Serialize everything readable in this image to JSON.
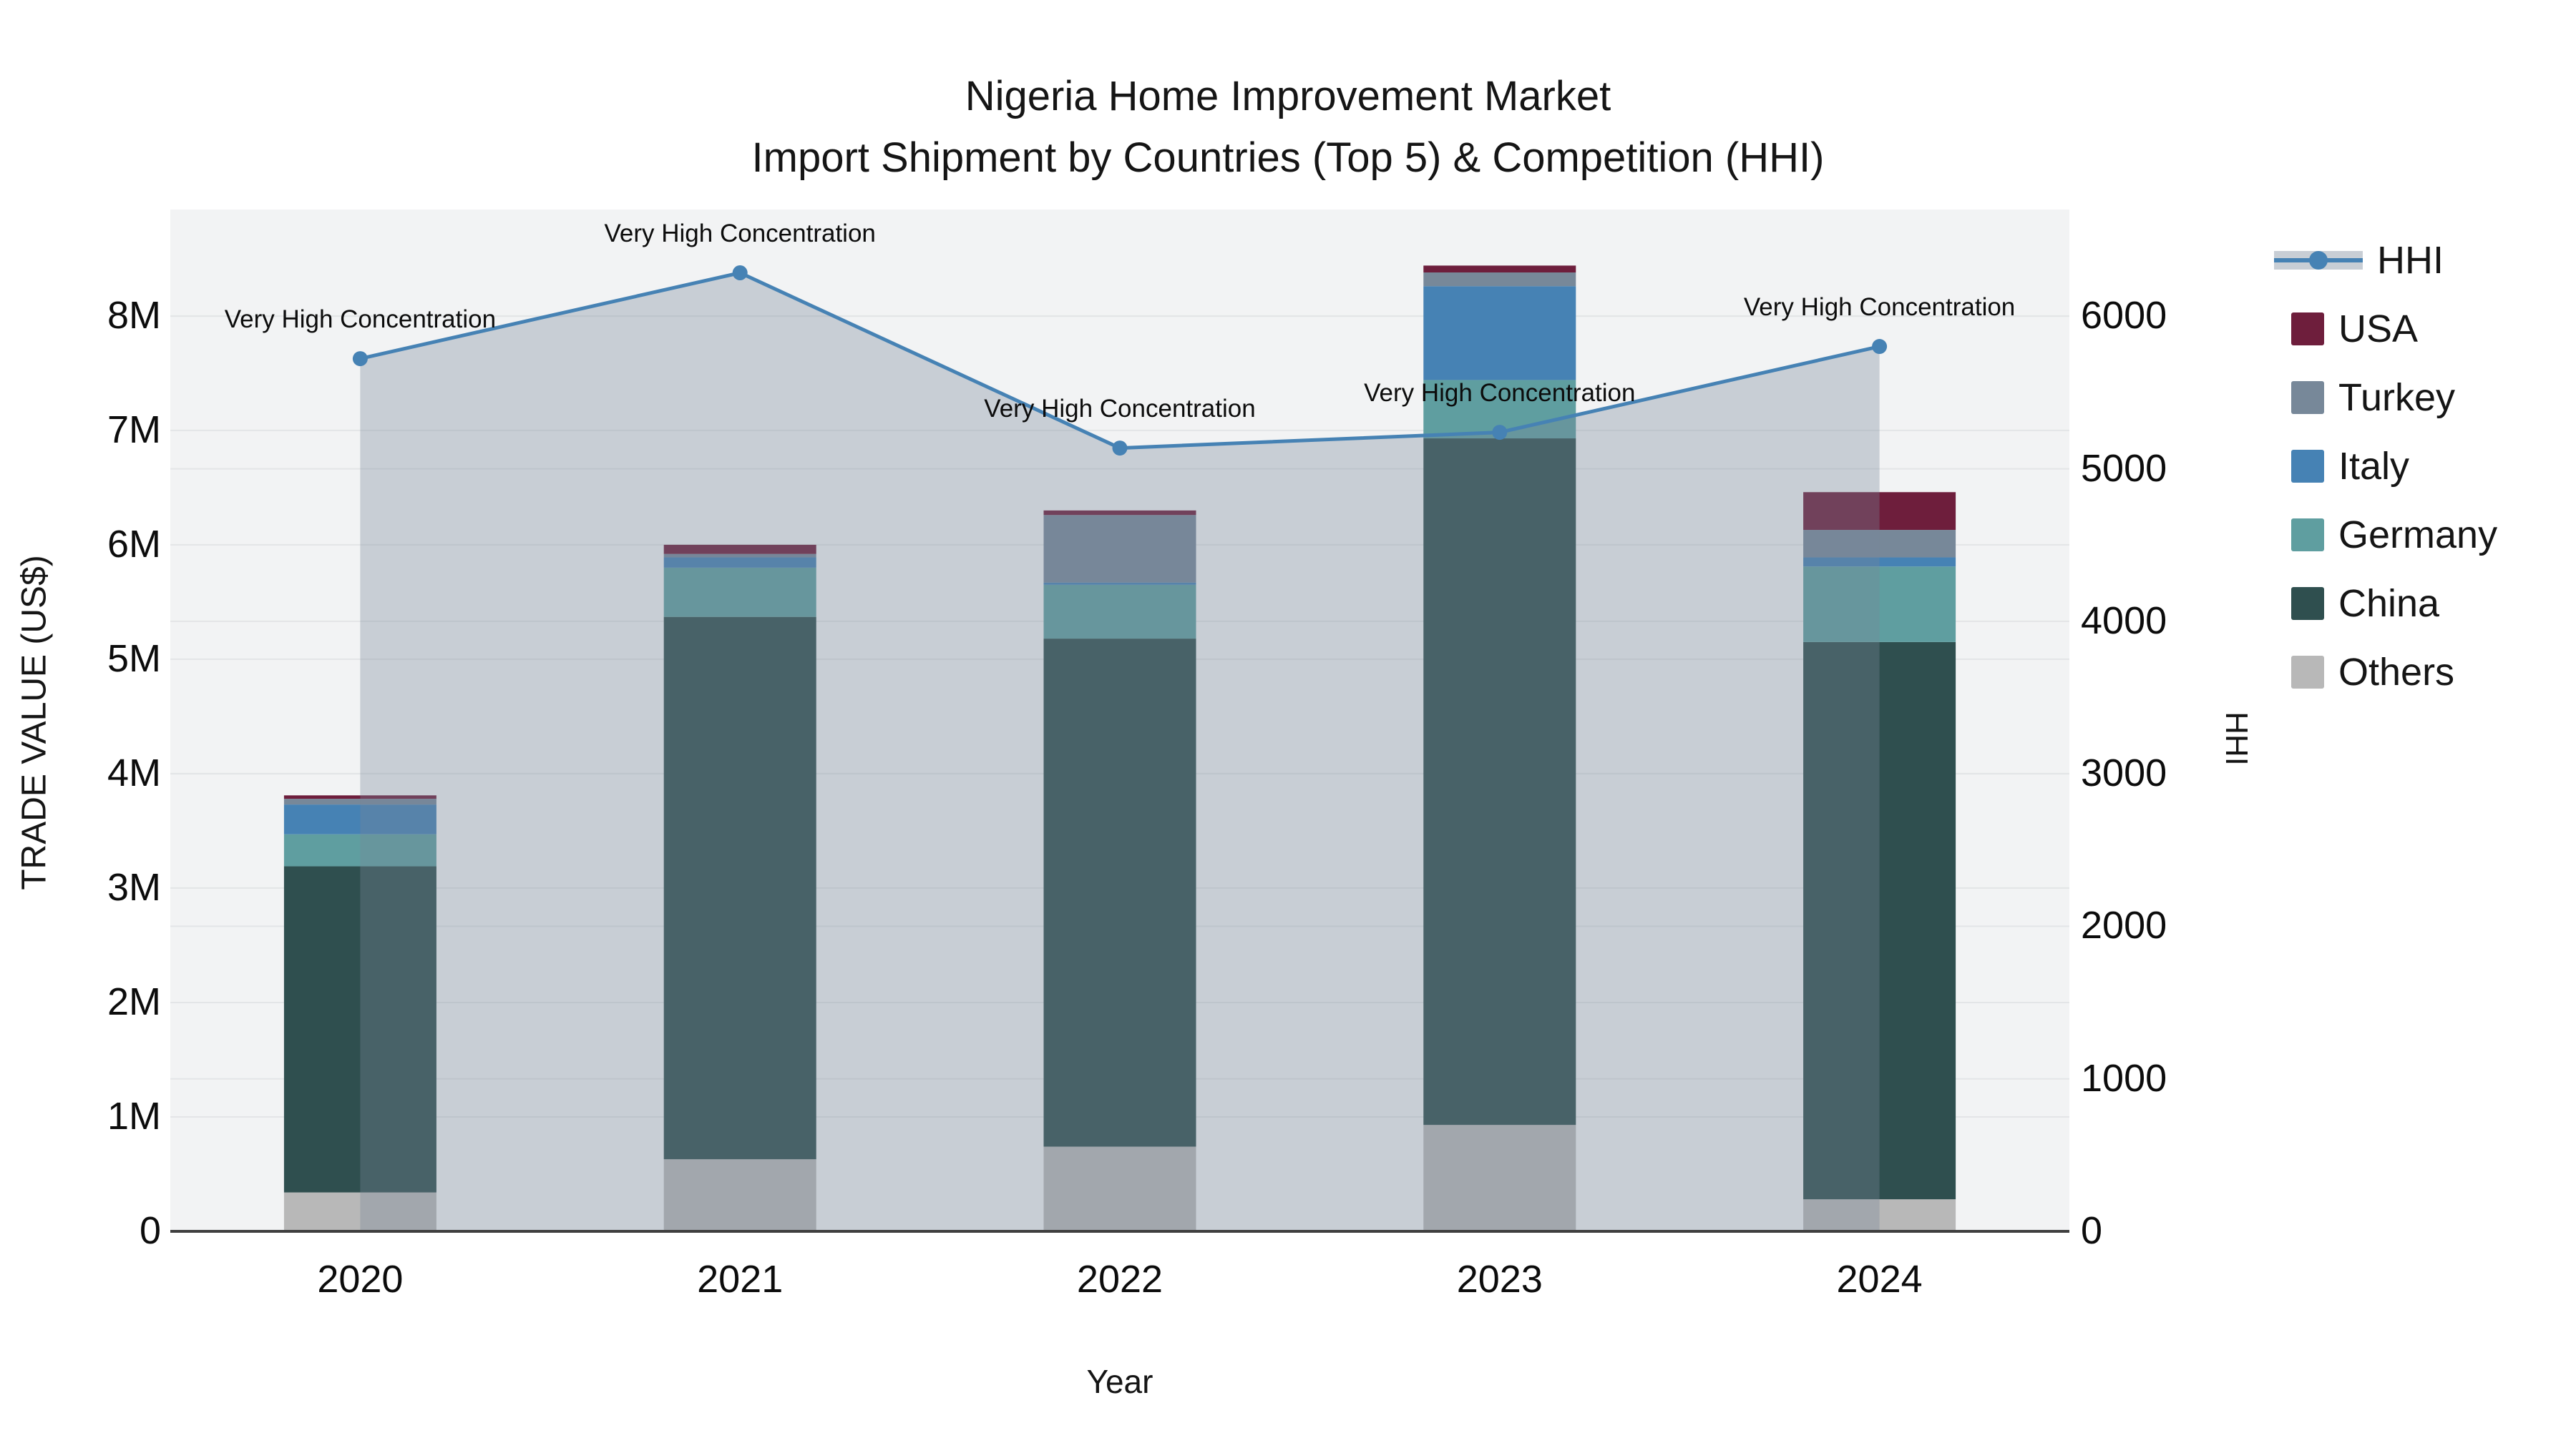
{
  "title": {
    "line1": "Nigeria Home Improvement Market",
    "line2": "Import Shipment by Countries (Top 5) & Competition (HHI)"
  },
  "axes": {
    "left": {
      "title": "TRADE VALUE (US$)",
      "tick_labels": [
        "0",
        "1M",
        "2M",
        "3M",
        "4M",
        "5M",
        "6M",
        "7M",
        "8M"
      ],
      "tick_values_musd": [
        0,
        1,
        2,
        3,
        4,
        5,
        6,
        7,
        8
      ],
      "max_value_at_top_musd": 8.93
    },
    "right": {
      "title": "HHI",
      "tick_labels": [
        "0",
        "1000",
        "2000",
        "3000",
        "4000",
        "5000",
        "6000"
      ],
      "tick_values": [
        0,
        1000,
        2000,
        3000,
        4000,
        5000,
        6000
      ],
      "max_value_at_top": 6700
    },
    "x": {
      "title": "Year",
      "tick_labels": [
        "2020",
        "2021",
        "2022",
        "2023",
        "2024"
      ]
    }
  },
  "legend": {
    "items": [
      {
        "label": "HHI",
        "type": "line",
        "color": "#4682b4"
      },
      {
        "label": "USA",
        "type": "swatch",
        "color": "#6e1e3c"
      },
      {
        "label": "Turkey",
        "type": "swatch",
        "color": "#778899"
      },
      {
        "label": "Italy",
        "type": "swatch",
        "color": "#4682b4"
      },
      {
        "label": "Germany",
        "type": "swatch",
        "color": "#5f9ea0"
      },
      {
        "label": "China",
        "type": "swatch",
        "color": "#2f4f4f"
      },
      {
        "label": "Others",
        "type": "swatch",
        "color": "#b8b8b8"
      }
    ]
  },
  "colors": {
    "plot_background": "#f2f3f4",
    "gridline": "#e3e5e7",
    "axis_line": "#3f3f3f",
    "hhi_line": "#4682b4",
    "hhi_area_fill": "rgba(119,136,153,0.34)",
    "text": "#111111"
  },
  "chart_data": {
    "type": "combo",
    "bar_mode": "stacked",
    "categories": [
      "2020",
      "2021",
      "2022",
      "2023",
      "2024"
    ],
    "bar_value_unit": "million US$",
    "series": [
      {
        "name": "Others",
        "color": "#b8b8b8",
        "values": [
          0.34,
          0.63,
          0.74,
          0.93,
          0.28
        ]
      },
      {
        "name": "China",
        "color": "#2f4f4f",
        "values": [
          2.85,
          4.74,
          4.44,
          6.0,
          4.87
        ]
      },
      {
        "name": "Germany",
        "color": "#5f9ea0",
        "values": [
          0.28,
          0.43,
          0.47,
          0.51,
          0.66
        ]
      },
      {
        "name": "Italy",
        "color": "#4682b4",
        "values": [
          0.26,
          0.09,
          0.02,
          0.82,
          0.08
        ]
      },
      {
        "name": "Turkey",
        "color": "#778899",
        "values": [
          0.05,
          0.03,
          0.59,
          0.12,
          0.24
        ]
      },
      {
        "name": "USA",
        "color": "#6e1e3c",
        "values": [
          0.03,
          0.08,
          0.04,
          0.06,
          0.33
        ]
      }
    ],
    "bar_totals_musd": [
      3.81,
      6.0,
      6.3,
      8.44,
      6.46
    ],
    "line_series": {
      "name": "HHI",
      "axis": "right",
      "values": [
        5722,
        6285,
        5136,
        5239,
        5802
      ],
      "area_fill_to_zero": true
    },
    "annotations": [
      {
        "x": "2020",
        "text": "Very High Concentration"
      },
      {
        "x": "2021",
        "text": "Very High Concentration"
      },
      {
        "x": "2022",
        "text": "Very High Concentration"
      },
      {
        "x": "2023",
        "text": "Very High Concentration"
      },
      {
        "x": "2024",
        "text": "Very High Concentration"
      }
    ],
    "left_ylim_musd": [
      0,
      8.93
    ],
    "right_ylim": [
      0,
      6700
    ],
    "grid": true,
    "legend_position": "right"
  }
}
